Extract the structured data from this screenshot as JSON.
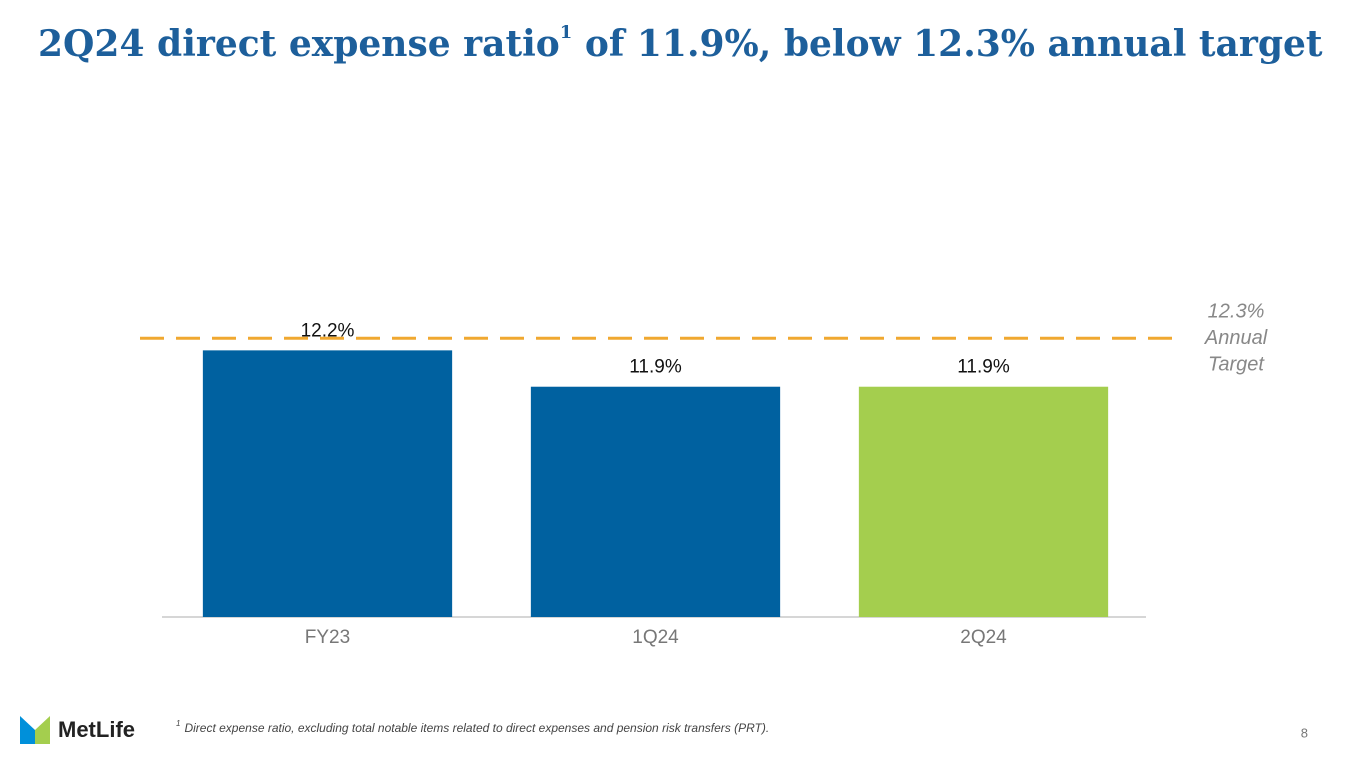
{
  "chart_data": {
    "type": "bar",
    "title": "2Q24 direct expense ratio",
    "title_footnote_mark": "1",
    "title_rest": " of 11.9%, below 12.3% annual target",
    "categories": [
      "FY23",
      "1Q24",
      "2Q24"
    ],
    "values": [
      12.2,
      11.9,
      11.9
    ],
    "value_labels": [
      "12.2%",
      "11.9%",
      "11.9%"
    ],
    "colors": [
      "#0061a0",
      "#0061a0",
      "#a4ce4e"
    ],
    "ylim": [
      10,
      12.5
    ],
    "target": {
      "value": 12.3,
      "label_lines": [
        "12.3%",
        "Annual",
        "Target"
      ],
      "color": "#f0a830"
    }
  },
  "footnote": {
    "mark": "1",
    "text": "Direct expense ratio, excluding total notable items related to direct expenses and pension risk transfers (PRT)."
  },
  "logo": "MetLife",
  "page_number": "8"
}
